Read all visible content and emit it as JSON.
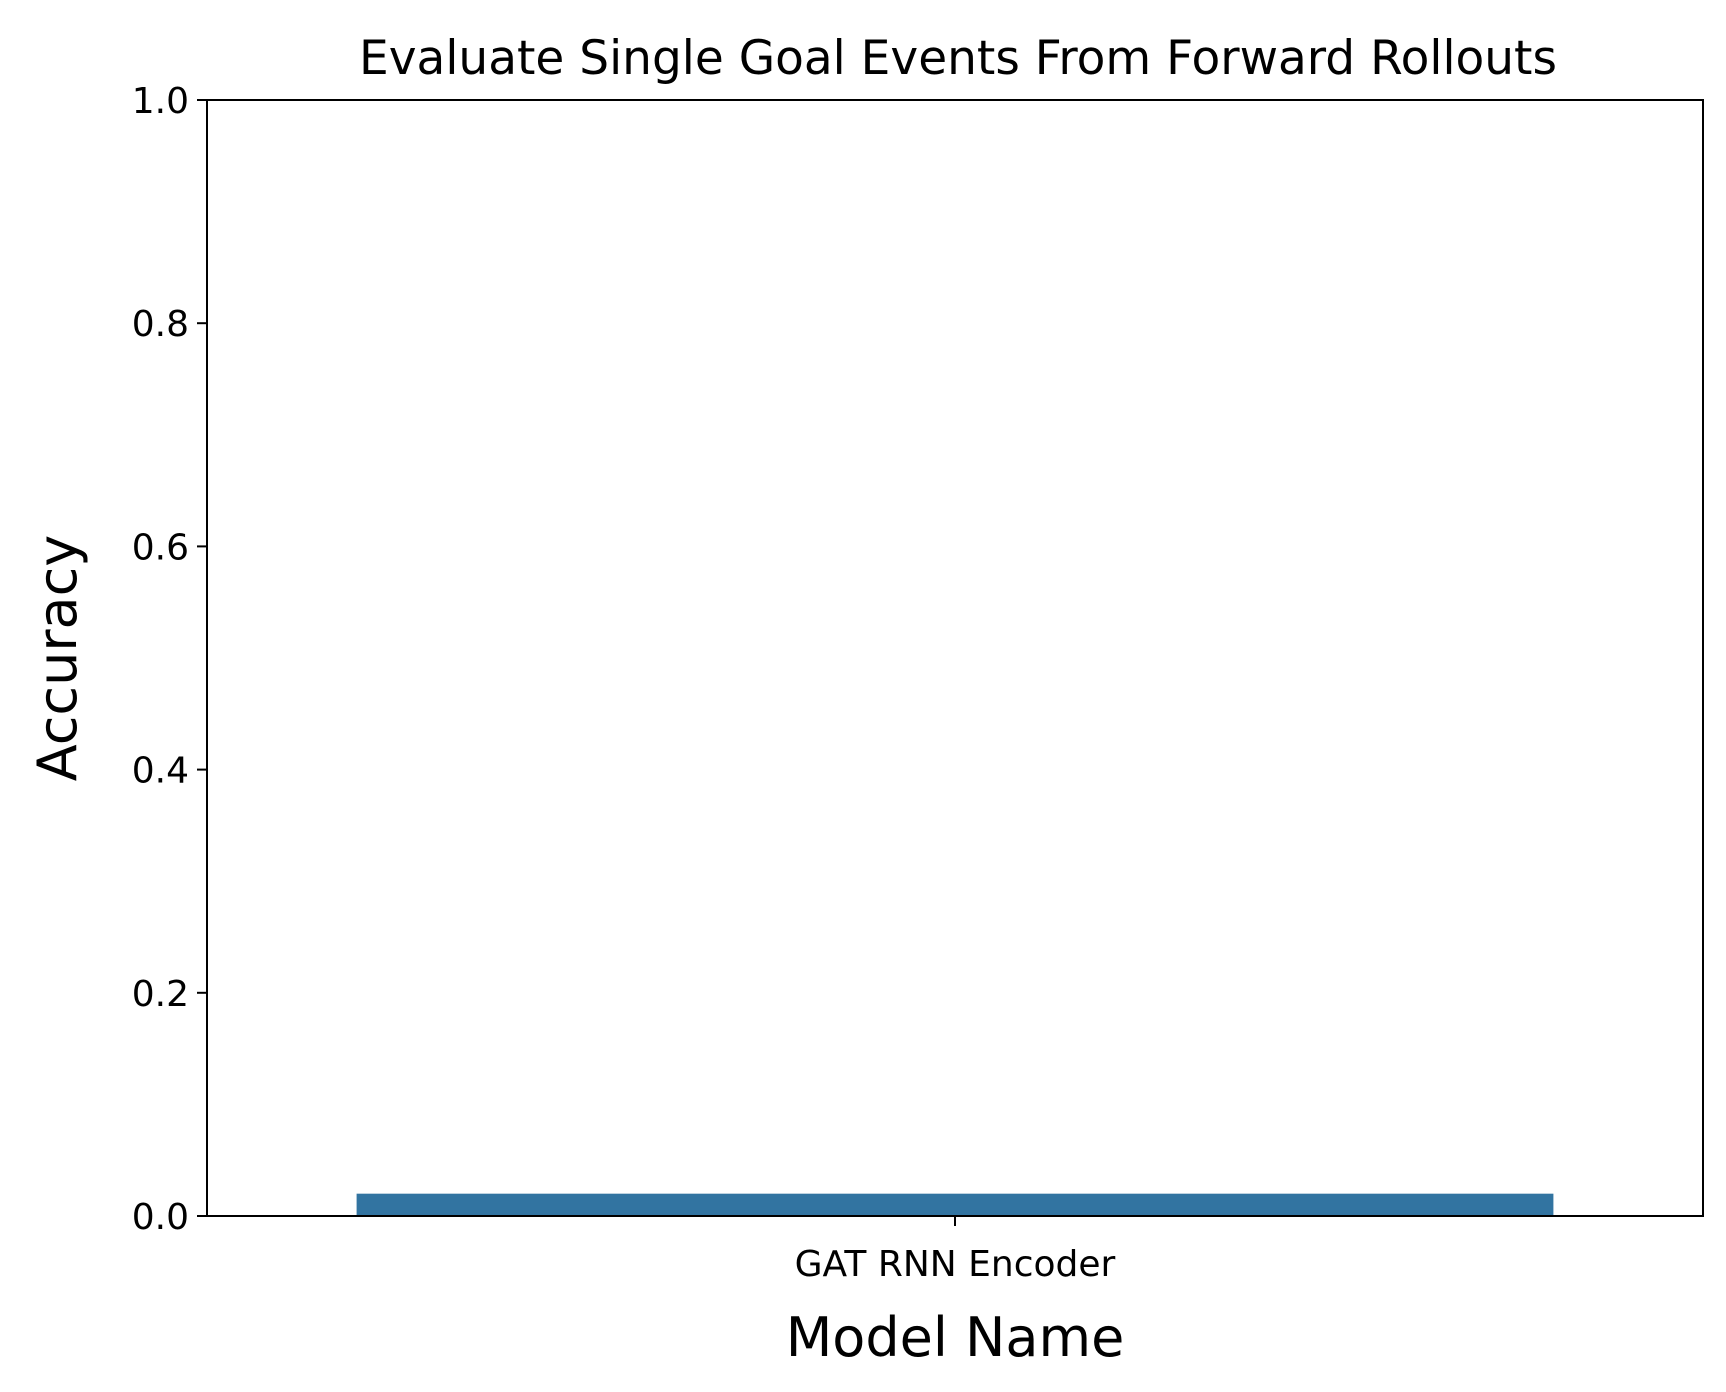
{
  "chart_data": {
    "type": "bar",
    "title": "Evaluate Single Goal Events From Forward Rollouts",
    "xlabel": "Model Name",
    "ylabel": "Accuracy",
    "categories": [
      "GAT RNN Encoder"
    ],
    "values": [
      0.02
    ],
    "ylim": [
      0,
      1
    ],
    "yticks": [
      "0.0",
      "0.2",
      "0.4",
      "0.6",
      "0.8",
      "1.0"
    ],
    "grid": false,
    "legend": "none",
    "bar_color": "#3274a1"
  }
}
